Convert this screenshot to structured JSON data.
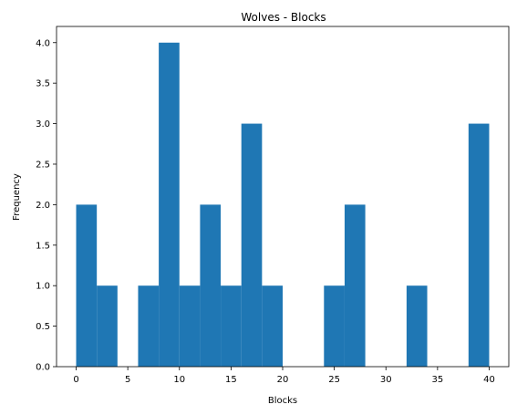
{
  "chart_data": {
    "type": "bar",
    "title": "Wolves - Blocks",
    "xlabel": "Blocks",
    "ylabel": "Frequency",
    "xlim": [
      -1.9,
      41.9
    ],
    "ylim": [
      0,
      4.2
    ],
    "grid": false,
    "bar_color": "#1f77b4",
    "bins": [
      {
        "x0": 0,
        "x1": 2,
        "value": 2
      },
      {
        "x0": 2,
        "x1": 4,
        "value": 1
      },
      {
        "x0": 4,
        "x1": 6,
        "value": 0
      },
      {
        "x0": 6,
        "x1": 8,
        "value": 1
      },
      {
        "x0": 8,
        "x1": 10,
        "value": 4
      },
      {
        "x0": 10,
        "x1": 12,
        "value": 1
      },
      {
        "x0": 12,
        "x1": 14,
        "value": 2
      },
      {
        "x0": 14,
        "x1": 16,
        "value": 1
      },
      {
        "x0": 16,
        "x1": 18,
        "value": 3
      },
      {
        "x0": 18,
        "x1": 20,
        "value": 1
      },
      {
        "x0": 20,
        "x1": 22,
        "value": 0
      },
      {
        "x0": 22,
        "x1": 24,
        "value": 0
      },
      {
        "x0": 24,
        "x1": 26,
        "value": 1
      },
      {
        "x0": 26,
        "x1": 28,
        "value": 2
      },
      {
        "x0": 28,
        "x1": 30,
        "value": 0
      },
      {
        "x0": 30,
        "x1": 32,
        "value": 0
      },
      {
        "x0": 32,
        "x1": 34,
        "value": 1
      },
      {
        "x0": 34,
        "x1": 36,
        "value": 0
      },
      {
        "x0": 36,
        "x1": 38,
        "value": 0
      },
      {
        "x0": 38,
        "x1": 40,
        "value": 3
      }
    ],
    "x_ticks": [
      0,
      5,
      10,
      15,
      20,
      25,
      30,
      35,
      40
    ],
    "x_tick_labels": [
      "0",
      "5",
      "10",
      "15",
      "20",
      "25",
      "30",
      "35",
      "40"
    ],
    "y_ticks": [
      0,
      0.5,
      1.0,
      1.5,
      2.0,
      2.5,
      3.0,
      3.5,
      4.0
    ],
    "y_tick_labels": [
      "0.0",
      "0.5",
      "1.0",
      "1.5",
      "2.0",
      "2.5",
      "3.0",
      "3.5",
      "4.0"
    ]
  }
}
